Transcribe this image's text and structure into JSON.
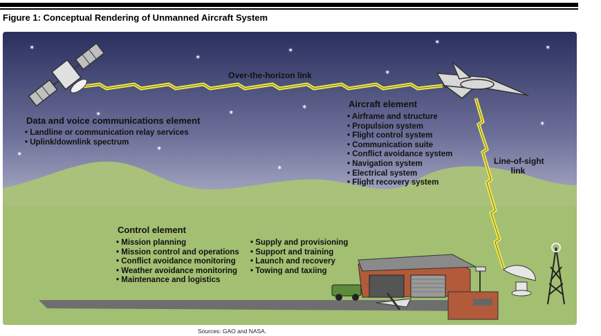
{
  "figure": {
    "title": "Figure 1: Conceptual Rendering of Unmanned Aircraft System",
    "source": "Sources: GAO and NASA."
  },
  "links": {
    "over_horizon": "Over-the-horizon link",
    "line_of_sight_1": "Line-of-sight",
    "line_of_sight_2": "link"
  },
  "data_voice": {
    "heading": "Data and voice communications element",
    "items": [
      "Landline or communication relay services",
      "Uplink/downlink spectrum"
    ]
  },
  "aircraft": {
    "heading": "Aircraft element",
    "items": [
      "Airframe and structure",
      "Propulsion system",
      "Flight control system",
      "Communication suite",
      "Conflict avoidance system",
      "Navigation system",
      "Electrical system",
      "Flight recovery system"
    ]
  },
  "control": {
    "heading": "Control element",
    "items_left": [
      "Mission planning",
      "Mission control and operations",
      "Conflict avoidance monitoring",
      "Weather avoidance monitoring",
      "Maintenance and logistics"
    ],
    "items_right": [
      "Supply and provisioning",
      "Support and training",
      "Launch and recovery",
      "Towing and taxiing"
    ]
  },
  "colors": {
    "sky_top": "#2b2f5e",
    "sky_bottom": "#dcdde8",
    "hill": "#a9c17a",
    "ground": "#a3bf72",
    "lightning": "#f2e94a",
    "hangar": "#b25a3a"
  }
}
